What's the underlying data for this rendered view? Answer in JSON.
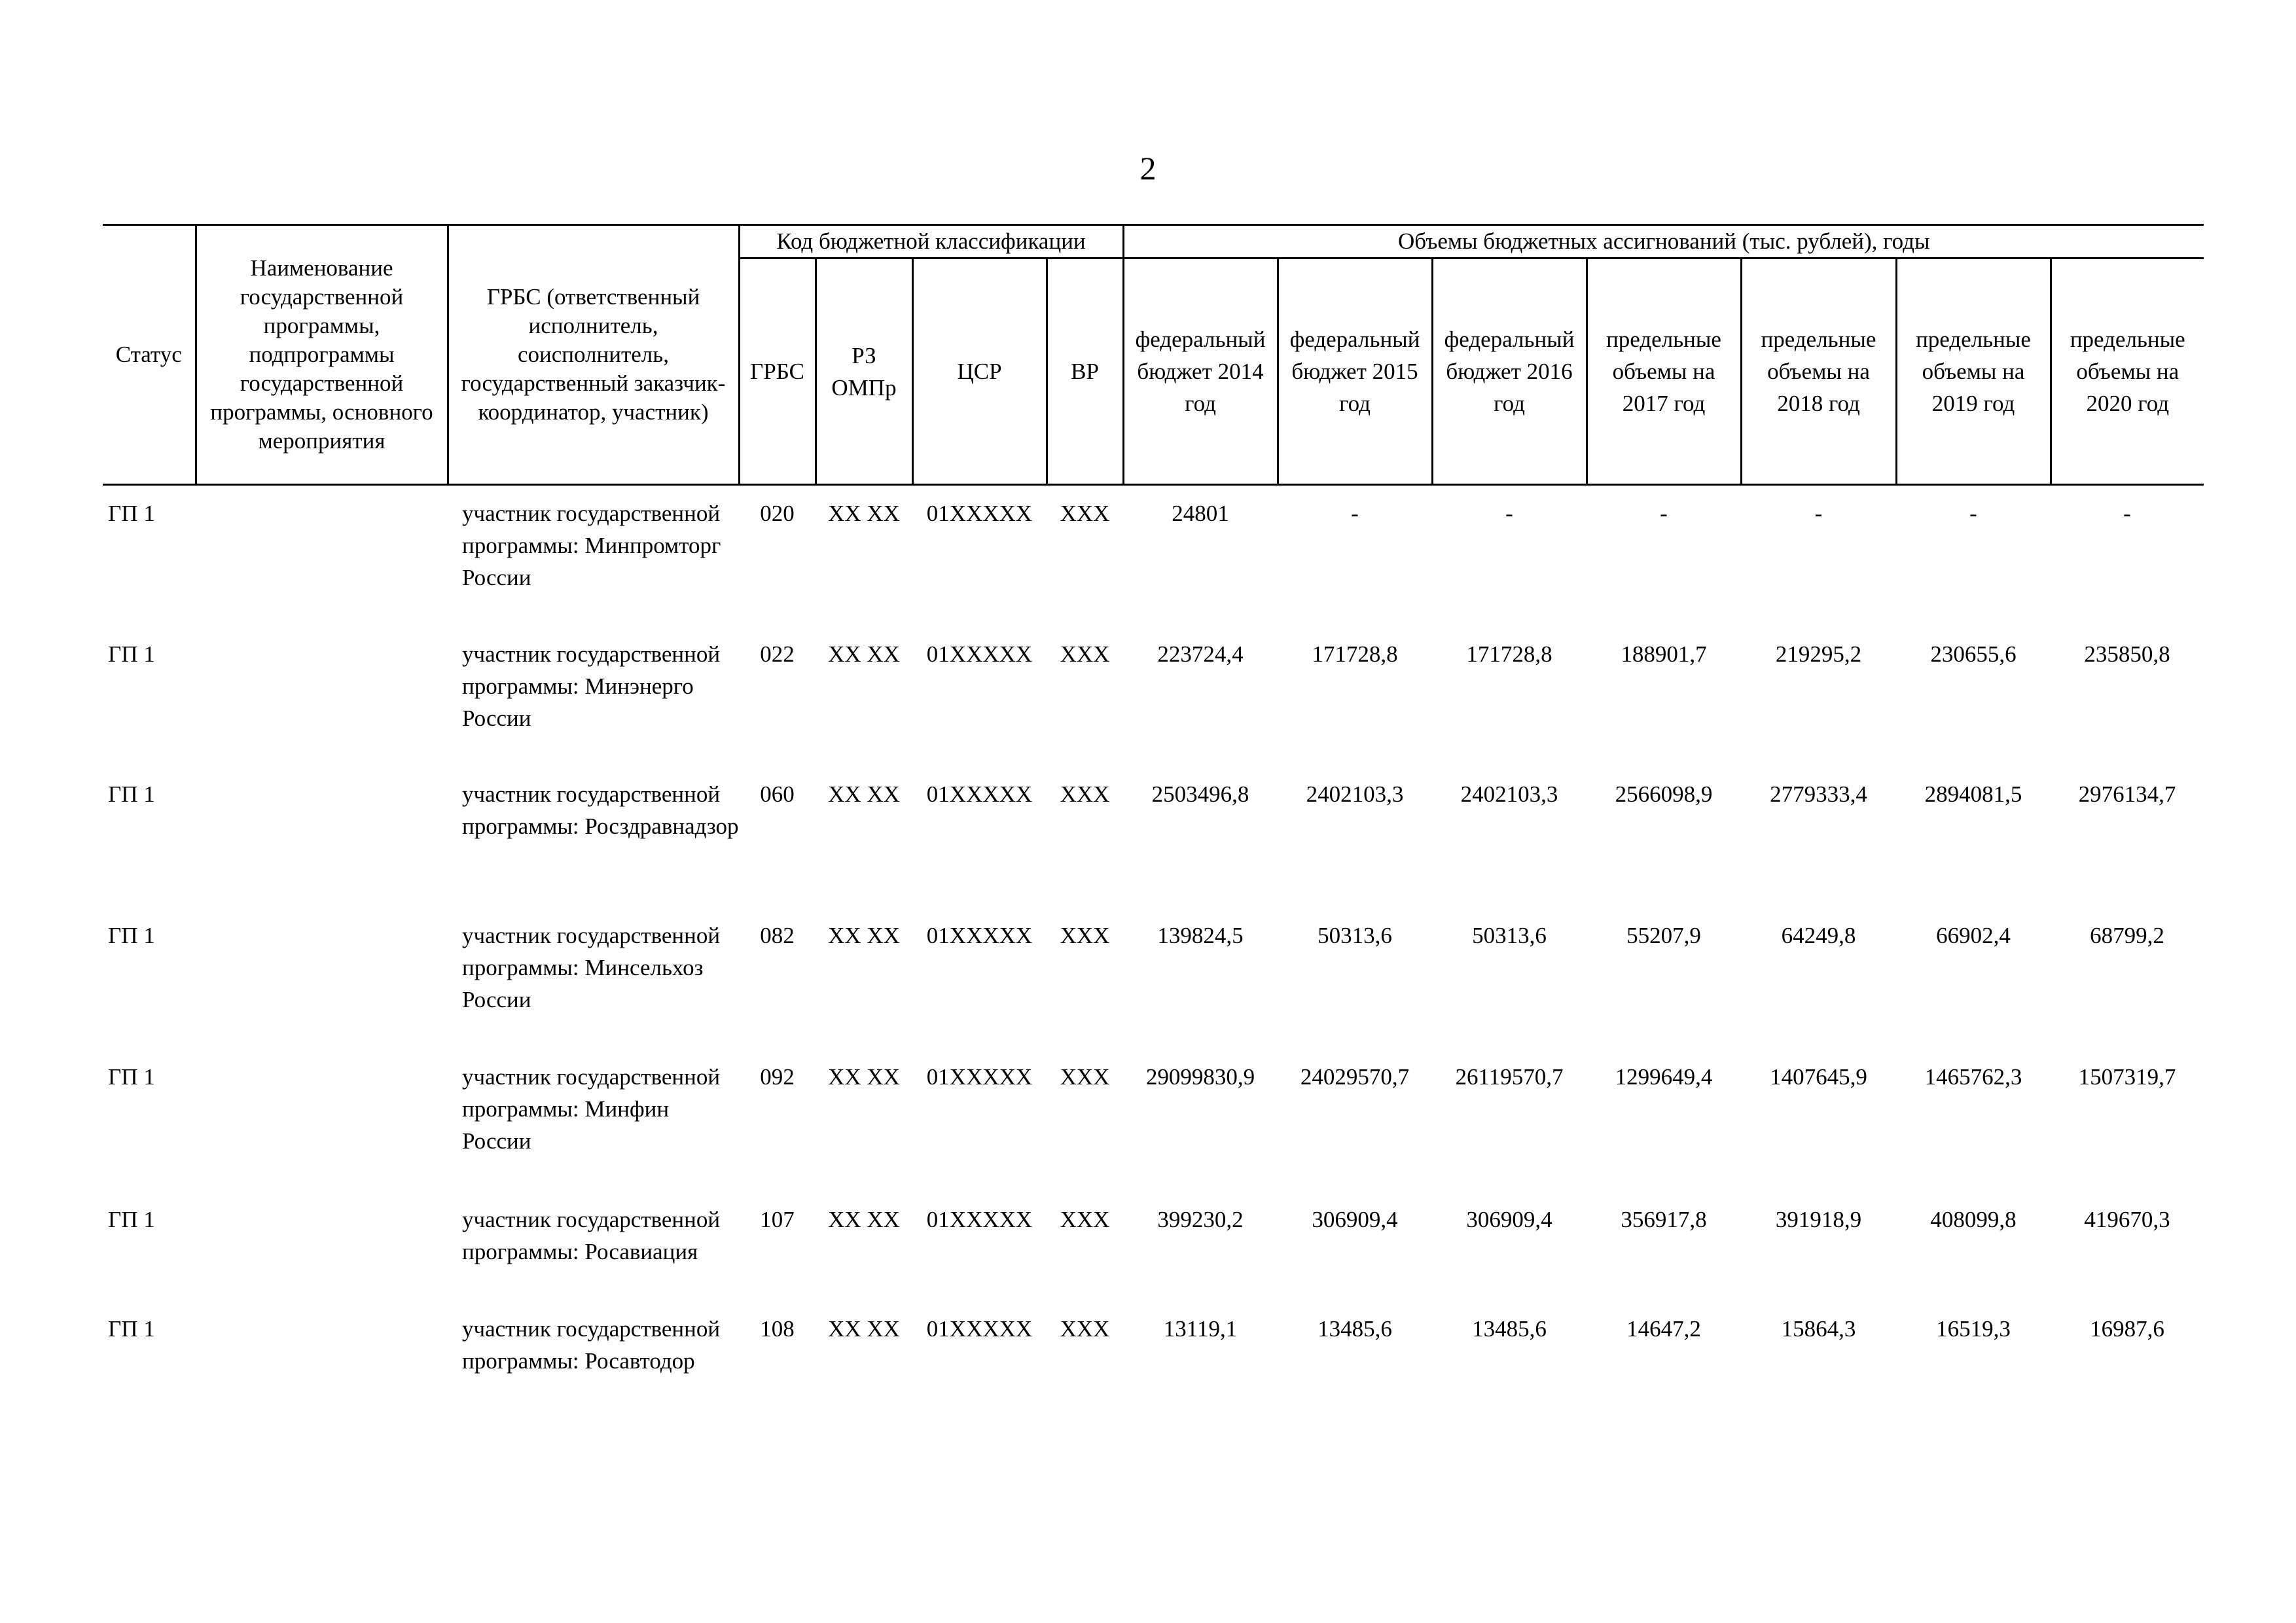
{
  "page_number": "2",
  "header": {
    "status": "Статус",
    "name": "Наименование государственной программы, подпрограммы государственной программы, основного мероприятия",
    "grbs_text": "ГРБС (ответственный исполнитель, соисполнитель, государственный заказчик-координатор, участник)",
    "budget_code": "Код бюджетной классификации",
    "volumes": "Объемы бюджетных ассигнований (тыс. рублей), годы",
    "code_cols": [
      "ГРБС",
      "РЗ ОМПр",
      "ЦСР",
      "ВР"
    ],
    "year_cols": [
      "федеральный бюджет 2014 год",
      "федеральный бюджет 2015 год",
      "федеральный бюджет 2016 год",
      "предельные объемы на 2017 год",
      "предельные объемы на 2018 год",
      "предельные объемы на 2019 год",
      "предельные объемы на 2020 год"
    ]
  },
  "rows": [
    {
      "status": "ГП 1",
      "name": "",
      "participant": "участник государственной программы: Минпромторг России",
      "grbs": "020",
      "rz": "XX XX",
      "csr": "01XXXXX",
      "vr": "XXX",
      "values": [
        "24801",
        "-",
        "-",
        "-",
        "-",
        "-",
        "-"
      ]
    },
    {
      "status": "ГП 1",
      "name": "",
      "participant": "участник государственной программы: Минэнерго России",
      "grbs": "022",
      "rz": "XX XX",
      "csr": "01XXXXX",
      "vr": "XXX",
      "values": [
        "223724,4",
        "171728,8",
        "171728,8",
        "188901,7",
        "219295,2",
        "230655,6",
        "235850,8"
      ]
    },
    {
      "status": "ГП 1",
      "name": "",
      "participant": "участник государственной программы: Росздравнадзор",
      "grbs": "060",
      "rz": "XX XX",
      "csr": "01XXXXX",
      "vr": "XXX",
      "values": [
        "2503496,8",
        "2402103,3",
        "2402103,3",
        "2566098,9",
        "2779333,4",
        "2894081,5",
        "2976134,7"
      ]
    },
    {
      "status": "ГП 1",
      "name": "",
      "participant": "участник государственной программы: Минсельхоз России",
      "grbs": "082",
      "rz": "XX XX",
      "csr": "01XXXXX",
      "vr": "XXX",
      "values": [
        "139824,5",
        "50313,6",
        "50313,6",
        "55207,9",
        "64249,8",
        "66902,4",
        "68799,2"
      ]
    },
    {
      "status": "ГП 1",
      "name": "",
      "participant": "участник государственной программы: Минфин России",
      "grbs": "092",
      "rz": "XX XX",
      "csr": "01XXXXX",
      "vr": "XXX",
      "values": [
        "29099830,9",
        "24029570,7",
        "26119570,7",
        "1299649,4",
        "1407645,9",
        "1465762,3",
        "1507319,7"
      ]
    },
    {
      "status": "ГП 1",
      "name": "",
      "participant": "участник государственной программы: Росавиация",
      "grbs": "107",
      "rz": "XX XX",
      "csr": "01XXXXX",
      "vr": "XXX",
      "values": [
        "399230,2",
        "306909,4",
        "306909,4",
        "356917,8",
        "391918,9",
        "408099,8",
        "419670,3"
      ]
    },
    {
      "status": "ГП 1",
      "name": "",
      "participant": "участник государственной программы: Росавтодор",
      "grbs": "108",
      "rz": "XX XX",
      "csr": "01XXXXX",
      "vr": "XXX",
      "values": [
        "13119,1",
        "13485,6",
        "13485,6",
        "14647,2",
        "15864,3",
        "16519,3",
        "16987,6"
      ]
    }
  ]
}
